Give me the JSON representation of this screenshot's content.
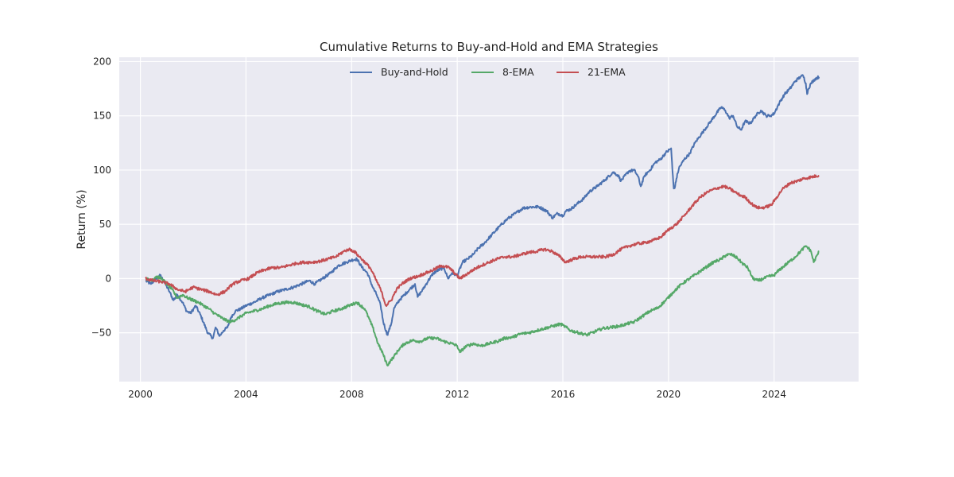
{
  "chart_data": {
    "type": "line",
    "title": "Cumulative Returns to Buy-and-Hold and EMA Strategies",
    "xlabel": "",
    "ylabel": "Return (%)",
    "xlim": [
      1999.2,
      2027.2
    ],
    "ylim": [
      -95,
      204
    ],
    "grid": true,
    "legend_position": "top-center",
    "xticks": [
      2000,
      2004,
      2008,
      2012,
      2016,
      2020,
      2024
    ],
    "xtick_labels": [
      "2000",
      "2004",
      "2008",
      "2012",
      "2016",
      "2020",
      "2024"
    ],
    "yticks": [
      -50,
      0,
      50,
      100,
      150,
      200
    ],
    "ytick_labels": [
      "−50",
      "0",
      "50",
      "100",
      "150",
      "200"
    ],
    "colors": {
      "background": "#EAEAF2",
      "grid": "#FFFFFF",
      "text": "#262626"
    },
    "series": [
      {
        "name": "Buy-and-Hold",
        "color": "#4C72B0",
        "x": [
          2000.2,
          2000.4,
          2000.6,
          2000.75,
          2000.9,
          2001.1,
          2001.25,
          2001.4,
          2001.6,
          2001.75,
          2001.9,
          2002.1,
          2002.3,
          2002.55,
          2002.75,
          2002.85,
          2003.0,
          2003.15,
          2003.3,
          2003.45,
          2003.6,
          2003.8,
          2004.0,
          2004.3,
          2004.6,
          2004.9,
          2005.2,
          2005.5,
          2005.8,
          2006.1,
          2006.4,
          2006.6,
          2006.9,
          2007.2,
          2007.5,
          2007.8,
          2008.0,
          2008.2,
          2008.4,
          2008.6,
          2008.8,
          2008.95,
          2009.1,
          2009.2,
          2009.35,
          2009.5,
          2009.6,
          2009.8,
          2010.0,
          2010.2,
          2010.4,
          2010.5,
          2010.7,
          2010.9,
          2011.1,
          2011.3,
          2011.5,
          2011.65,
          2011.8,
          2012.0,
          2012.2,
          2012.4,
          2012.6,
          2012.8,
          2013.0,
          2013.3,
          2013.6,
          2013.9,
          2014.2,
          2014.5,
          2014.8,
          2015.1,
          2015.4,
          2015.6,
          2015.8,
          2016.0,
          2016.1,
          2016.3,
          2016.5,
          2016.8,
          2017.0,
          2017.3,
          2017.6,
          2017.9,
          2018.1,
          2018.2,
          2018.5,
          2018.7,
          2018.85,
          2018.95,
          2019.1,
          2019.3,
          2019.5,
          2019.7,
          2019.9,
          2020.1,
          2020.15,
          2020.2,
          2020.25,
          2020.3,
          2020.4,
          2020.6,
          2020.8,
          2021.0,
          2021.3,
          2021.6,
          2021.9,
          2022.0,
          2022.15,
          2022.3,
          2022.45,
          2022.6,
          2022.75,
          2022.9,
          2023.1,
          2023.3,
          2023.5,
          2023.7,
          2023.85,
          2024.0,
          2024.2,
          2024.4,
          2024.6,
          2024.8,
          2025.0,
          2025.1,
          2025.2,
          2025.25,
          2025.3,
          2025.4,
          2025.55,
          2025.7
        ],
        "values": [
          -2,
          -5,
          0,
          3,
          -3,
          -12,
          -20,
          -15,
          -22,
          -30,
          -32,
          -25,
          -35,
          -50,
          -55,
          -45,
          -53,
          -48,
          -45,
          -35,
          -30,
          -28,
          -25,
          -22,
          -18,
          -15,
          -12,
          -10,
          -8,
          -5,
          -2,
          -5,
          0,
          5,
          12,
          15,
          17,
          18,
          10,
          5,
          -8,
          -15,
          -25,
          -40,
          -52,
          -42,
          -28,
          -20,
          -15,
          -10,
          -5,
          -17,
          -10,
          -2,
          5,
          8,
          10,
          0,
          5,
          3,
          15,
          18,
          22,
          28,
          32,
          40,
          48,
          55,
          60,
          65,
          66,
          66,
          62,
          56,
          60,
          58,
          62,
          64,
          68,
          74,
          80,
          85,
          91,
          98,
          95,
          90,
          99,
          100,
          94,
          85,
          95,
          100,
          107,
          110,
          116,
          120,
          100,
          83,
          85,
          92,
          102,
          110,
          115,
          125,
          135,
          145,
          155,
          158,
          155,
          148,
          150,
          140,
          137,
          145,
          143,
          150,
          155,
          150,
          150,
          152,
          162,
          170,
          175,
          182,
          186,
          187,
          180,
          170,
          175,
          180,
          184,
          186
        ]
      },
      {
        "name": "8-EMA",
        "color": "#55A868",
        "x": [
          2000.2,
          2000.4,
          2000.6,
          2000.8,
          2001.0,
          2001.2,
          2001.4,
          2001.6,
          2001.8,
          2002.0,
          2002.2,
          2002.4,
          2002.6,
          2002.8,
          2003.0,
          2003.2,
          2003.4,
          2003.6,
          2003.8,
          2004.0,
          2004.3,
          2004.6,
          2004.9,
          2005.2,
          2005.5,
          2005.8,
          2006.1,
          2006.4,
          2006.7,
          2007.0,
          2007.3,
          2007.6,
          2007.9,
          2008.2,
          2008.5,
          2008.8,
          2009.0,
          2009.2,
          2009.35,
          2009.5,
          2009.6,
          2009.8,
          2010.0,
          2010.3,
          2010.6,
          2010.9,
          2011.2,
          2011.5,
          2011.8,
          2012.0,
          2012.1,
          2012.3,
          2012.6,
          2012.9,
          2013.2,
          2013.5,
          2013.8,
          2014.1,
          2014.4,
          2014.7,
          2015.0,
          2015.3,
          2015.6,
          2015.9,
          2016.0,
          2016.3,
          2016.6,
          2016.9,
          2017.2,
          2017.5,
          2017.8,
          2018.1,
          2018.4,
          2018.7,
          2019.0,
          2019.3,
          2019.6,
          2019.9,
          2020.2,
          2020.5,
          2020.8,
          2021.1,
          2021.4,
          2021.7,
          2022.0,
          2022.2,
          2022.4,
          2022.6,
          2022.8,
          2023.0,
          2023.2,
          2023.4,
          2023.6,
          2023.8,
          2024.0,
          2024.2,
          2024.4,
          2024.6,
          2024.8,
          2025.0,
          2025.2,
          2025.3,
          2025.4,
          2025.5,
          2025.7
        ],
        "values": [
          0,
          -2,
          2,
          0,
          -5,
          -10,
          -18,
          -15,
          -18,
          -20,
          -22,
          -25,
          -28,
          -32,
          -35,
          -38,
          -40,
          -38,
          -35,
          -32,
          -30,
          -28,
          -25,
          -23,
          -22,
          -22,
          -24,
          -26,
          -30,
          -33,
          -30,
          -28,
          -25,
          -22,
          -28,
          -45,
          -60,
          -70,
          -80,
          -75,
          -72,
          -65,
          -60,
          -57,
          -58,
          -55,
          -55,
          -58,
          -60,
          -62,
          -68,
          -63,
          -60,
          -62,
          -60,
          -58,
          -55,
          -54,
          -51,
          -50,
          -48,
          -46,
          -44,
          -42,
          -43,
          -48,
          -50,
          -52,
          -49,
          -46,
          -45,
          -44,
          -42,
          -40,
          -35,
          -30,
          -27,
          -20,
          -12,
          -5,
          0,
          5,
          10,
          15,
          18,
          22,
          22,
          19,
          14,
          10,
          0,
          -2,
          0,
          2,
          3,
          8,
          12,
          16,
          20,
          25,
          30,
          28,
          25,
          15,
          25
        ]
      },
      {
        "name": "21-EMA",
        "color": "#C44E52",
        "x": [
          2000.2,
          2000.5,
          2000.8,
          2001.1,
          2001.4,
          2001.7,
          2002.0,
          2002.3,
          2002.6,
          2002.9,
          2003.2,
          2003.5,
          2003.8,
          2004.1,
          2004.4,
          2004.7,
          2005.0,
          2005.3,
          2005.6,
          2005.9,
          2006.2,
          2006.5,
          2006.8,
          2007.1,
          2007.4,
          2007.7,
          2007.9,
          2008.1,
          2008.3,
          2008.5,
          2008.7,
          2008.9,
          2009.1,
          2009.3,
          2009.5,
          2009.7,
          2009.9,
          2010.2,
          2010.5,
          2010.8,
          2011.1,
          2011.4,
          2011.7,
          2011.9,
          2012.1,
          2012.3,
          2012.6,
          2012.9,
          2013.2,
          2013.5,
          2013.8,
          2014.1,
          2014.4,
          2014.7,
          2015.0,
          2015.3,
          2015.6,
          2015.9,
          2016.1,
          2016.4,
          2016.7,
          2017.0,
          2017.3,
          2017.6,
          2017.9,
          2018.2,
          2018.5,
          2018.8,
          2019.1,
          2019.4,
          2019.7,
          2020.0,
          2020.3,
          2020.6,
          2020.9,
          2021.2,
          2021.5,
          2021.8,
          2022.1,
          2022.3,
          2022.5,
          2022.7,
          2022.9,
          2023.1,
          2023.3,
          2023.5,
          2023.7,
          2023.9,
          2024.1,
          2024.3,
          2024.6,
          2024.9,
          2025.1,
          2025.3,
          2025.5,
          2025.7
        ],
        "values": [
          0,
          -2,
          -3,
          -5,
          -10,
          -12,
          -8,
          -10,
          -12,
          -15,
          -12,
          -5,
          -2,
          0,
          5,
          8,
          10,
          10,
          12,
          14,
          15,
          15,
          16,
          18,
          20,
          25,
          27,
          25,
          20,
          15,
          10,
          0,
          -10,
          -25,
          -20,
          -10,
          -5,
          0,
          2,
          5,
          8,
          12,
          10,
          5,
          0,
          3,
          8,
          12,
          15,
          18,
          20,
          20,
          22,
          24,
          25,
          27,
          25,
          20,
          15,
          18,
          20,
          20,
          20,
          20,
          22,
          27,
          30,
          32,
          33,
          35,
          38,
          45,
          50,
          58,
          67,
          75,
          80,
          83,
          85,
          83,
          80,
          77,
          75,
          70,
          66,
          65,
          66,
          68,
          75,
          82,
          88,
          90,
          92,
          93,
          94,
          95
        ]
      }
    ]
  }
}
